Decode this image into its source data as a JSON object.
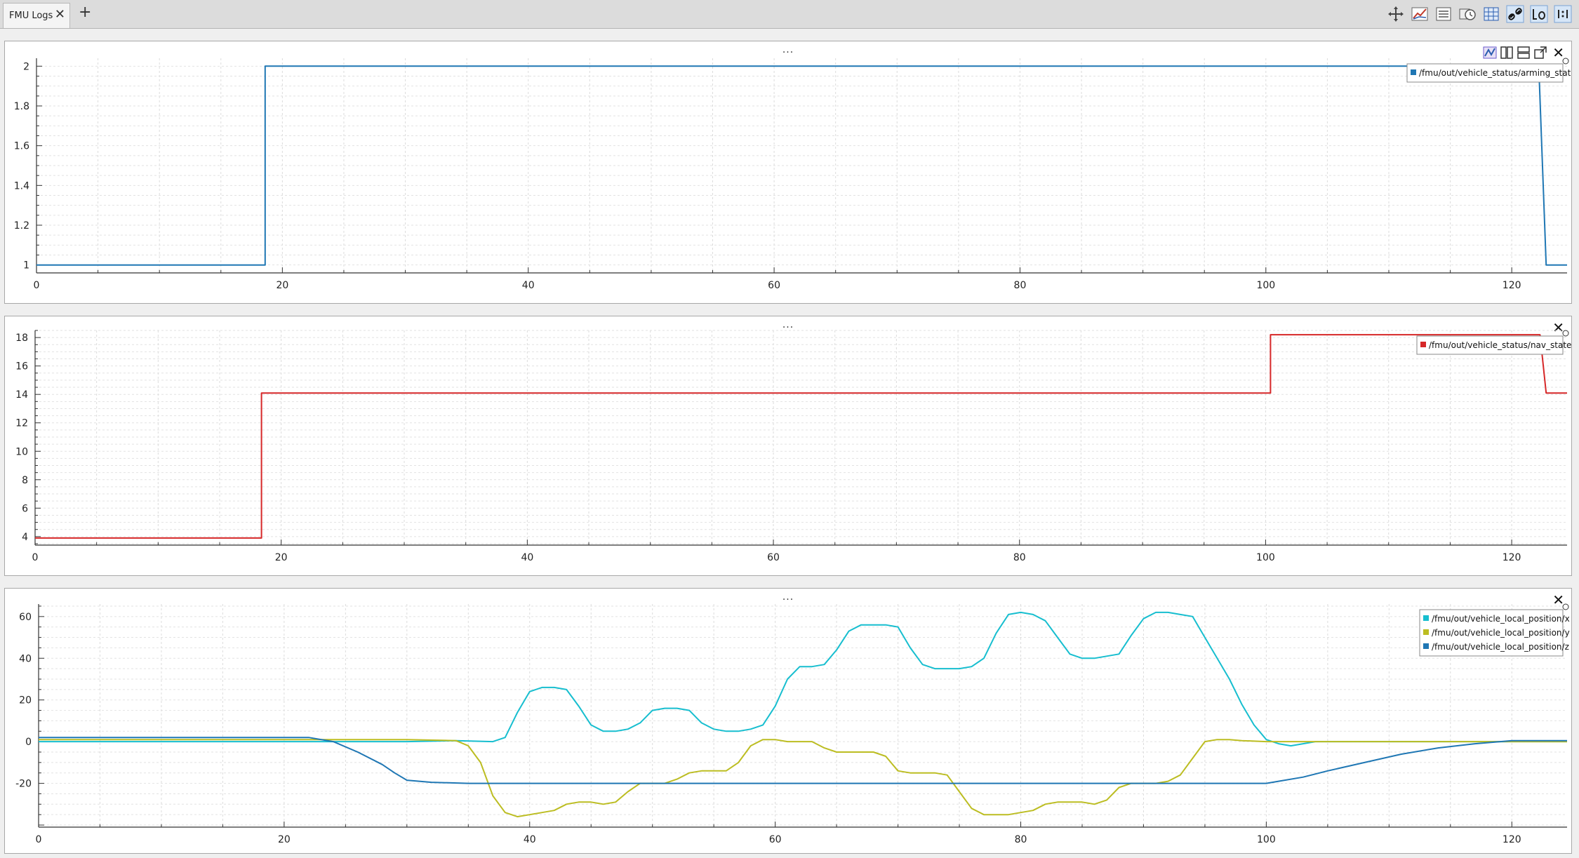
{
  "tab": {
    "label": "FMU Logs",
    "close": "✕",
    "add": "+"
  },
  "toolbar": {
    "buttons": [
      {
        "name": "move-icon"
      },
      {
        "name": "add-curve-icon"
      },
      {
        "name": "list-icon"
      },
      {
        "name": "time-icon"
      },
      {
        "name": "grid-icon"
      },
      {
        "name": "link-icon"
      },
      {
        "name": "t0-icon"
      },
      {
        "name": "ratio-icon"
      }
    ]
  },
  "panels": [
    {
      "dots": "...",
      "close": "✕",
      "legend": [
        {
          "label": "/fmu/out/vehicle_status/arming_state",
          "color": "#1f77b4"
        }
      ],
      "chart": {
        "xlim": [
          0,
          124.5
        ],
        "ylim": [
          0.96,
          2.04
        ],
        "yticks": [
          1,
          1.2,
          1.4,
          1.6,
          1.8,
          2
        ],
        "xticks": [
          0,
          20,
          40,
          60,
          80,
          100,
          120
        ]
      }
    },
    {
      "dots": "...",
      "close": "✕",
      "legend": [
        {
          "label": "/fmu/out/vehicle_status/nav_state",
          "color": "#d62728"
        }
      ],
      "chart": {
        "xlim": [
          0,
          124.5
        ],
        "ylim": [
          3.4,
          18.5
        ],
        "yticks": [
          4,
          6,
          8,
          10,
          12,
          14,
          16,
          18
        ],
        "xticks": [
          0,
          20,
          40,
          60,
          80,
          100,
          120
        ]
      }
    },
    {
      "dots": "...",
      "close": "✕",
      "legend": [
        {
          "label": "/fmu/out/vehicle_local_position/x",
          "color": "#17becf"
        },
        {
          "label": "/fmu/out/vehicle_local_position/y",
          "color": "#bcbd22"
        },
        {
          "label": "/fmu/out/vehicle_local_position/z",
          "color": "#1f77b4"
        }
      ],
      "chart": {
        "xlim": [
          0,
          124.5
        ],
        "ylim": [
          -41,
          66
        ],
        "yticks": [
          -20,
          0,
          20,
          40,
          60
        ],
        "xticks": [
          0,
          20,
          40,
          60,
          80,
          100,
          120
        ]
      }
    }
  ],
  "chart_data": [
    {
      "type": "line",
      "xlabel": "",
      "ylabel": "",
      "xlim": [
        0,
        124.5
      ],
      "ylim": [
        0.96,
        2.04
      ],
      "series": [
        {
          "name": "/fmu/out/vehicle_status/arming_state",
          "color": "#1f77b4",
          "x": [
            0,
            18.6,
            18.6,
            122.2,
            122.8,
            124.5
          ],
          "y": [
            1,
            1,
            2,
            2,
            1,
            1
          ]
        }
      ]
    },
    {
      "type": "line",
      "xlabel": "",
      "ylabel": "",
      "xlim": [
        0,
        124.5
      ],
      "ylim": [
        3.4,
        18.5
      ],
      "series": [
        {
          "name": "/fmu/out/vehicle_status/nav_state",
          "color": "#d62728",
          "x": [
            0,
            18.4,
            18.4,
            100.4,
            100.4,
            122.3,
            122.8,
            124.5
          ],
          "y": [
            3.9,
            3.9,
            14.1,
            14.1,
            18.2,
            18.2,
            14.1,
            14.1
          ]
        }
      ]
    },
    {
      "type": "line",
      "xlabel": "",
      "ylabel": "",
      "xlim": [
        0,
        124.5
      ],
      "ylim": [
        -41,
        66
      ],
      "series": [
        {
          "name": "/fmu/out/vehicle_local_position/x",
          "color": "#17becf",
          "x": [
            0,
            22,
            30,
            34,
            37,
            38,
            39,
            40,
            41,
            42,
            43,
            44,
            45,
            46,
            47,
            48,
            49,
            50,
            51,
            52,
            53,
            54,
            55,
            56,
            57,
            58,
            59,
            60,
            61,
            62,
            63,
            64,
            65,
            66,
            67,
            68,
            69,
            70,
            71,
            72,
            73,
            74,
            75,
            76,
            77,
            78,
            79,
            80,
            81,
            82,
            83,
            84,
            85,
            86,
            87,
            88,
            89,
            90,
            91,
            92,
            93,
            94,
            95,
            96,
            97,
            98,
            99,
            100,
            101,
            102,
            104,
            110,
            120,
            124.5
          ],
          "y": [
            0,
            0,
            0,
            0.5,
            0,
            2,
            14,
            24,
            26,
            26,
            25,
            17,
            8,
            5,
            5,
            6,
            9,
            15,
            16,
            16,
            15,
            9,
            6,
            5,
            5,
            6,
            8,
            17,
            30,
            36,
            36,
            37,
            44,
            53,
            56,
            56,
            56,
            55,
            45,
            37,
            35,
            35,
            35,
            36,
            40,
            52,
            61,
            62,
            61,
            58,
            50,
            42,
            40,
            40,
            41,
            42,
            51,
            59,
            62,
            62,
            61,
            60,
            50,
            40,
            30,
            18,
            8,
            1,
            -1,
            -2,
            0,
            0,
            0,
            0
          ]
        },
        {
          "name": "/fmu/out/vehicle_local_position/y",
          "color": "#bcbd22",
          "x": [
            0,
            22,
            30,
            34,
            35,
            36,
            37,
            38,
            39,
            40,
            41,
            42,
            43,
            44,
            45,
            46,
            47,
            48,
            49,
            50,
            51,
            52,
            53,
            54,
            55,
            56,
            57,
            58,
            59,
            60,
            61,
            62,
            63,
            64,
            65,
            66,
            67,
            68,
            69,
            70,
            71,
            72,
            73,
            74,
            75,
            76,
            77,
            78,
            79,
            80,
            81,
            82,
            83,
            84,
            85,
            86,
            87,
            88,
            89,
            90,
            91,
            92,
            93,
            94,
            95,
            96,
            97,
            98,
            100,
            110,
            124.5
          ],
          "y": [
            1,
            1,
            1,
            0.5,
            -2,
            -10,
            -26,
            -34,
            -36,
            -35,
            -34,
            -33,
            -30,
            -29,
            -29,
            -30,
            -29,
            -24,
            -20,
            -20,
            -20,
            -18,
            -15,
            -14,
            -14,
            -14,
            -10,
            -2,
            1,
            1,
            0,
            0,
            0,
            -3,
            -5,
            -5,
            -5,
            -5,
            -7,
            -14,
            -15,
            -15,
            -15,
            -16,
            -24,
            -32,
            -35,
            -35,
            -35,
            -34,
            -33,
            -30,
            -29,
            -29,
            -29,
            -30,
            -28,
            -22,
            -20,
            -20,
            -20,
            -19,
            -16,
            -8,
            0,
            1,
            1,
            0.5,
            0,
            0,
            0
          ]
        },
        {
          "name": "/fmu/out/vehicle_local_position/z",
          "color": "#1f77b4",
          "x": [
            0,
            22,
            24,
            26,
            28,
            29,
            30,
            32,
            35,
            40,
            60,
            80,
            100,
            101,
            103,
            105,
            108,
            111,
            114,
            117,
            120,
            124.5
          ],
          "y": [
            2,
            2,
            0,
            -5,
            -11,
            -15,
            -18.5,
            -19.5,
            -20,
            -20,
            -20,
            -20,
            -20,
            -19,
            -17,
            -14,
            -10,
            -6,
            -3,
            -1,
            0.5,
            0.5
          ]
        }
      ]
    }
  ]
}
